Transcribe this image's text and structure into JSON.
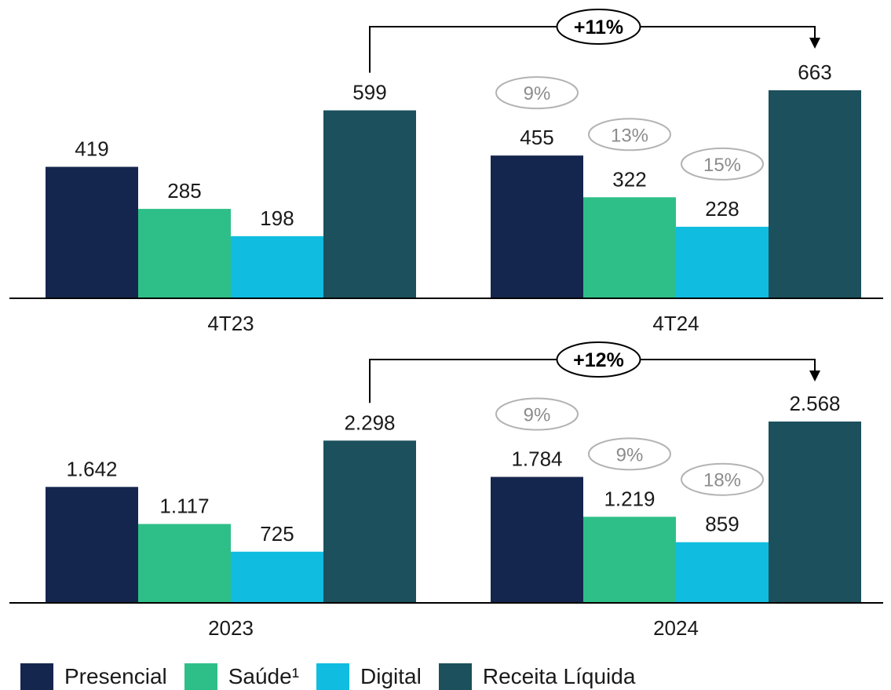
{
  "chart_data": [
    {
      "type": "bar",
      "categories": [
        "4T23",
        "4T24"
      ],
      "series": [
        {
          "name": "Presencial",
          "color": "#15264e",
          "values": [
            419,
            455
          ],
          "labels": [
            "419",
            "455"
          ]
        },
        {
          "name": "Saúde¹",
          "color": "#2ebf88",
          "values": [
            285,
            322
          ],
          "labels": [
            "285",
            "322"
          ]
        },
        {
          "name": "Digital",
          "color": "#10bde0",
          "values": [
            198,
            228
          ],
          "labels": [
            "198",
            "228"
          ]
        },
        {
          "name": "Receita Líquida",
          "color": "#1b505c",
          "values": [
            599,
            663
          ],
          "labels": [
            "599",
            "663"
          ]
        }
      ],
      "growth_labels": [
        "9%",
        "13%",
        "15%"
      ],
      "total_growth": "+11%",
      "title": "",
      "xlabel": "",
      "ylabel": ""
    },
    {
      "type": "bar",
      "categories": [
        "2023",
        "2024"
      ],
      "series": [
        {
          "name": "Presencial",
          "color": "#15264e",
          "values": [
            1642,
            1784
          ],
          "labels": [
            "1.642",
            "1.784"
          ]
        },
        {
          "name": "Saúde¹",
          "color": "#2ebf88",
          "values": [
            1117,
            1219
          ],
          "labels": [
            "1.117",
            "1.219"
          ]
        },
        {
          "name": "Digital",
          "color": "#10bde0",
          "values": [
            725,
            859
          ],
          "labels": [
            "725",
            "859"
          ]
        },
        {
          "name": "Receita Líquida",
          "color": "#1b505c",
          "values": [
            2298,
            2568
          ],
          "labels": [
            "2.298",
            "2.568"
          ]
        }
      ],
      "growth_labels": [
        "9%",
        "9%",
        "18%"
      ],
      "total_growth": "+12%",
      "title": "",
      "xlabel": "",
      "ylabel": ""
    }
  ],
  "legend": [
    {
      "label": "Presencial",
      "color": "#15264e"
    },
    {
      "label": "Saúde¹",
      "color": "#2ebf88"
    },
    {
      "label": "Digital",
      "color": "#10bde0"
    },
    {
      "label": "Receita Líquida",
      "color": "#1b505c"
    }
  ]
}
